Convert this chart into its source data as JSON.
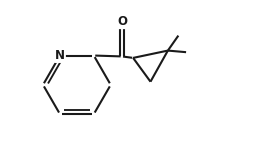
{
  "background_color": "#ffffff",
  "line_color": "#1a1a1a",
  "line_width": 1.5,
  "fig_width": 2.58,
  "fig_height": 1.66,
  "dpi": 100,
  "font_size": 8.5,
  "N_label": "N",
  "O_label": "O",
  "xlim": [
    0.0,
    1.0
  ],
  "ylim": [
    0.05,
    0.95
  ]
}
